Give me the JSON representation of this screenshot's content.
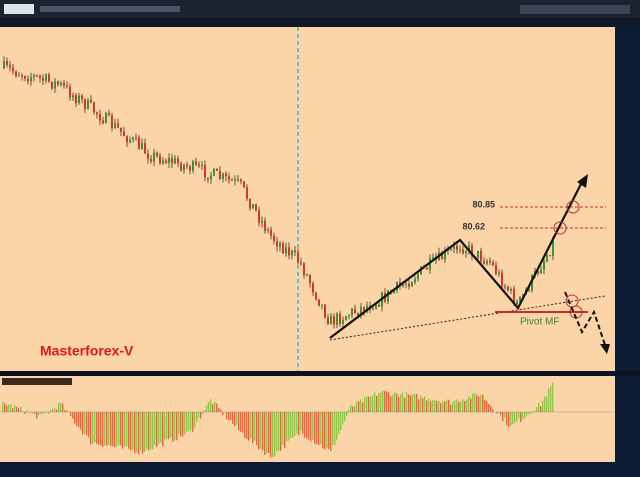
{
  "annotations": {
    "level_high": "80.85",
    "level_low": "80.62",
    "pivot": "Pivot MF",
    "watermark": "Masterforex-V"
  }
}
